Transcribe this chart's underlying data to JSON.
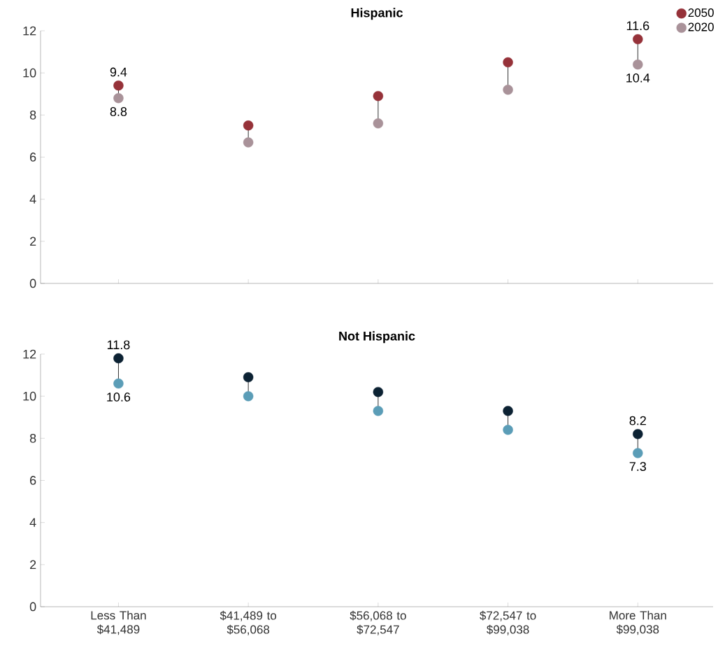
{
  "chart_data": [
    {
      "type": "scatter",
      "title": "Hispanic",
      "categories": [
        null,
        null,
        null,
        null,
        null
      ],
      "ylim": [
        0,
        12
      ],
      "yticks": [
        0,
        2,
        4,
        6,
        8,
        10,
        12
      ],
      "tick_labels": "y",
      "legend": "top right",
      "series": [
        {
          "name": "2050",
          "color": "#963239",
          "values": [
            9.4,
            7.5,
            8.9,
            10.5,
            11.6
          ],
          "value_labels": [
            "9.4",
            null,
            null,
            null,
            "11.6"
          ]
        },
        {
          "name": "2020",
          "color": "#a99299",
          "values": [
            8.8,
            6.7,
            7.6,
            9.2,
            10.4
          ],
          "value_labels": [
            "8.8",
            null,
            null,
            null,
            "10.4"
          ]
        }
      ]
    },
    {
      "type": "scatter",
      "title": "Not Hispanic",
      "categories": [
        "Less Than $41,489",
        "$41,489 to $56,068",
        "$56,068 to $72,547",
        "$72,547 to $99,038",
        "More Than $99,038"
      ],
      "ylim": [
        0,
        12
      ],
      "yticks": [
        0,
        2,
        4,
        6,
        8,
        10,
        12
      ],
      "series": [
        {
          "color": "#0c2233",
          "values": [
            11.8,
            10.9,
            10.2,
            9.3,
            8.2
          ],
          "value_labels": [
            "11.8",
            null,
            null,
            null,
            "8.2"
          ]
        },
        {
          "color": "#5b9db7",
          "values": [
            10.6,
            10.0,
            9.3,
            8.4,
            7.3
          ],
          "value_labels": [
            "10.6",
            null,
            null,
            null,
            "7.3"
          ]
        }
      ]
    }
  ]
}
